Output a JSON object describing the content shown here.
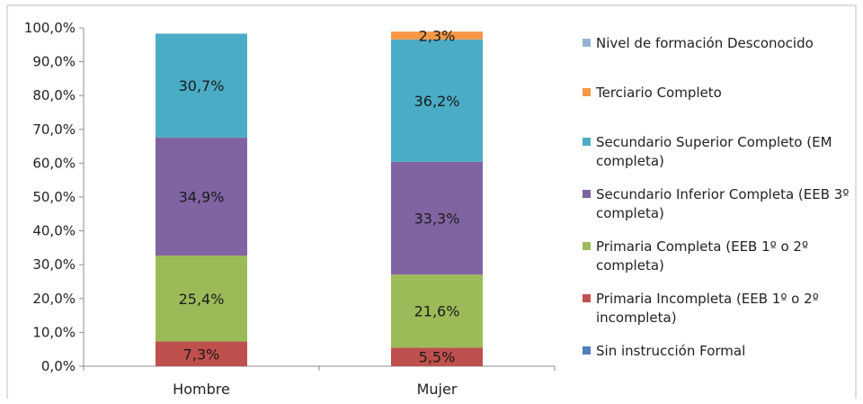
{
  "chart_data": {
    "type": "bar",
    "stacked": true,
    "categories": [
      "Hombre",
      "Mujer"
    ],
    "ylim": [
      0,
      100
    ],
    "yticks": [
      "0,0%",
      "10,0%",
      "20,0%",
      "30,0%",
      "40,0%",
      "50,0%",
      "60,0%",
      "70,0%",
      "80,0%",
      "90,0%",
      "100,0%"
    ],
    "series": [
      {
        "name": "Sin instrucción Formal",
        "color": "#4F81BD",
        "values": [
          0,
          0
        ],
        "labels": [
          "",
          ""
        ]
      },
      {
        "name": "Primaria Incompleta (EEB 1º o 2º incompleta)",
        "color": "#C0504D",
        "values": [
          7.3,
          5.5
        ],
        "labels": [
          "7,3%",
          "5,5%"
        ]
      },
      {
        "name": "Primaria Completa (EEB 1º o 2º completa)",
        "color": "#9BBB59",
        "values": [
          25.4,
          21.6
        ],
        "labels": [
          "25,4%",
          "21,6%"
        ]
      },
      {
        "name": "Secundario Inferior Completa (EEB 3º completa)",
        "color": "#8064A2",
        "values": [
          34.9,
          33.3
        ],
        "labels": [
          "34,9%",
          "33,3%"
        ]
      },
      {
        "name": "Secundario Superior Completo  (EM completa)",
        "color": "#4BACC6",
        "values": [
          30.7,
          36.2
        ],
        "labels": [
          "30,7%",
          "36,2%"
        ]
      },
      {
        "name": "Terciario Completo",
        "color": "#F79646",
        "values": [
          0,
          2.3
        ],
        "labels": [
          "",
          "2,3%"
        ]
      },
      {
        "name": "Nivel de formación Desconocido",
        "color": "#95B3D7",
        "values": [
          0,
          0
        ],
        "labels": [
          "",
          ""
        ]
      }
    ],
    "legend": {
      "position": "right",
      "entries": [
        {
          "lines": [
            "Nivel de formación Desconocido"
          ],
          "color": "#95B3D7"
        },
        {
          "lines": [
            "Terciario Completo"
          ],
          "color": "#F79646"
        },
        {
          "lines": [
            "Secundario Superior Completo  (EM",
            "completa)"
          ],
          "color": "#4BACC6"
        },
        {
          "lines": [
            "Secundario Inferior Completa (EEB 3º",
            "completa)"
          ],
          "color": "#8064A2"
        },
        {
          "lines": [
            "Primaria Completa (EEB 1º o 2º",
            "completa)"
          ],
          "color": "#9BBB59"
        },
        {
          "lines": [
            "Primaria Incompleta (EEB 1º o 2º",
            "incompleta)"
          ],
          "color": "#C0504D"
        },
        {
          "lines": [
            "Sin instrucción Formal"
          ],
          "color": "#4F81BD"
        }
      ]
    },
    "grid": false
  }
}
